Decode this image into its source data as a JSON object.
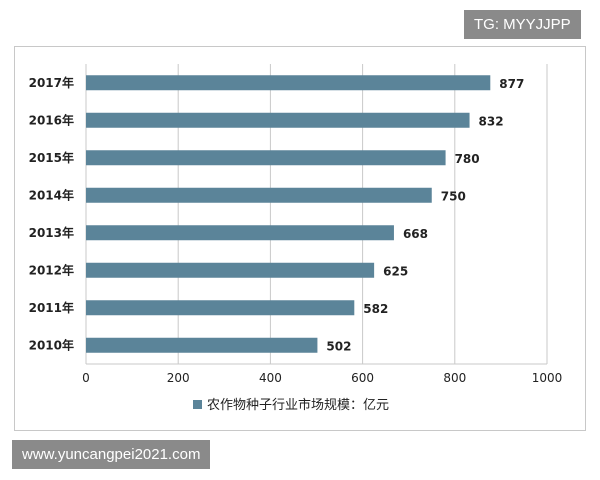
{
  "watermarks": {
    "top": "TG: MYYJJPP",
    "bottom": "www.yuncangpei2021.com"
  },
  "colors": {
    "bar": "#5b8499",
    "grid": "#c9c9c9",
    "text": "#222222"
  },
  "chart_data": {
    "type": "bar",
    "orientation": "horizontal",
    "categories": [
      "2017年",
      "2016年",
      "2015年",
      "2014年",
      "2013年",
      "2012年",
      "2011年",
      "2010年"
    ],
    "series": [
      {
        "name": "农作物种子行业市场规模：亿元",
        "values": [
          877,
          832,
          780,
          750,
          668,
          625,
          582,
          502
        ]
      }
    ],
    "xlim": [
      0,
      1000
    ],
    "xticks": [
      0,
      200,
      400,
      600,
      800,
      1000
    ],
    "grid": true,
    "legend": "bottom"
  }
}
